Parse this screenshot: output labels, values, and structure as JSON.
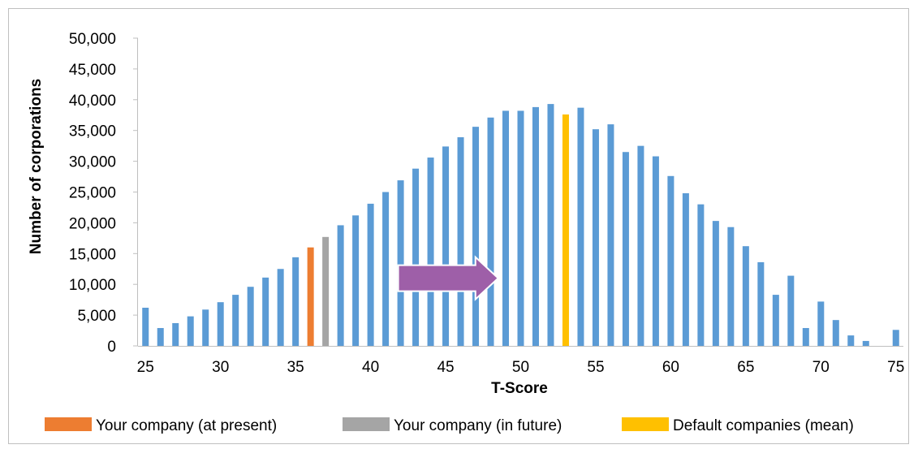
{
  "chart_data": {
    "type": "bar",
    "title": "",
    "xlabel": "T-Score",
    "ylabel": "Number of corporations",
    "x": [
      25,
      26,
      27,
      28,
      29,
      30,
      31,
      32,
      33,
      34,
      35,
      36,
      37,
      38,
      39,
      40,
      41,
      42,
      43,
      44,
      45,
      46,
      47,
      48,
      49,
      50,
      51,
      52,
      53,
      54,
      55,
      56,
      57,
      58,
      59,
      60,
      61,
      62,
      63,
      64,
      65,
      66,
      67,
      68,
      69,
      70,
      71,
      72,
      73,
      74,
      75
    ],
    "values": [
      6200,
      2900,
      3700,
      4800,
      5900,
      7100,
      8300,
      9600,
      11100,
      12500,
      14400,
      16000,
      17700,
      19600,
      21200,
      23100,
      25000,
      26900,
      28800,
      30600,
      32400,
      33900,
      35600,
      37100,
      38200,
      38200,
      38800,
      39300,
      37600,
      38700,
      35200,
      36000,
      31500,
      32500,
      30800,
      27600,
      24800,
      23000,
      20300,
      19300,
      16200,
      13600,
      8300,
      11400,
      2900,
      7200,
      4200,
      1700,
      800,
      0,
      2600
    ],
    "ylim": [
      0,
      50000
    ],
    "yticks": [
      "0",
      "5,000",
      "10,000",
      "15,000",
      "20,000",
      "25,000",
      "30,000",
      "35,000",
      "40,000",
      "45,000",
      "50,000"
    ],
    "ytick_values": [
      0,
      5000,
      10000,
      15000,
      20000,
      25000,
      30000,
      35000,
      40000,
      45000,
      50000
    ],
    "xticks": [
      "25",
      "30",
      "35",
      "40",
      "45",
      "50",
      "55",
      "60",
      "65",
      "70",
      "75"
    ],
    "xtick_values": [
      25,
      30,
      35,
      40,
      45,
      50,
      55,
      60,
      65,
      70,
      75
    ],
    "grid": false,
    "legend_position": "bottom",
    "default_color": "#5b9bd5",
    "highlights": [
      {
        "x": 36,
        "color": "#ed7d31",
        "name": "Your company (at present)"
      },
      {
        "x": 37,
        "color": "#a5a5a5",
        "name": "Your company (in future)"
      },
      {
        "x": 53,
        "color": "#ffc000",
        "name": "Default companies (mean)"
      }
    ],
    "annotation": {
      "type": "arrow",
      "color": "#9e5fa8",
      "x_from": 42,
      "x_to": 48.5,
      "y": 11000
    }
  },
  "legend": [
    {
      "label": "Your company (at present)",
      "color": "#ed7d31"
    },
    {
      "label": "Your company (in future)",
      "color": "#a5a5a5"
    },
    {
      "label": "Default companies (mean)",
      "color": "#ffc000"
    }
  ]
}
